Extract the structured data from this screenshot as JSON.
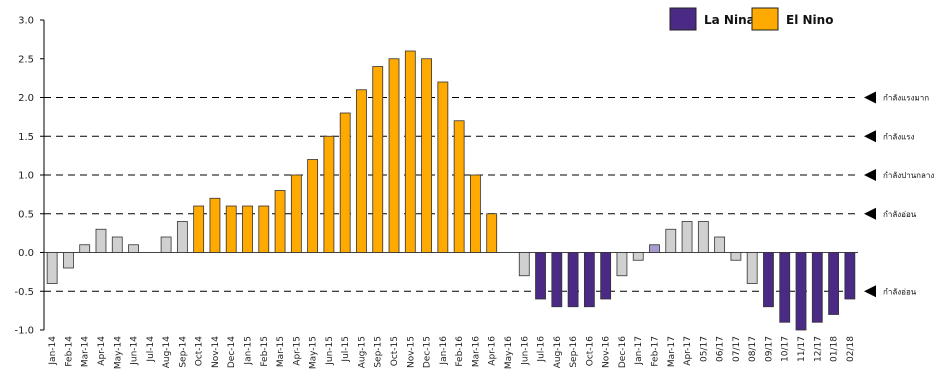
{
  "chart_data": {
    "type": "bar",
    "ylim": [
      -1.0,
      3.0
    ],
    "yticks": [
      "3.0",
      "2.5",
      "2.0",
      "1.5",
      "1.0",
      "0.5",
      "0.0",
      "-0.5",
      "-1.0"
    ],
    "ytick_values": [
      3.0,
      2.5,
      2.0,
      1.5,
      1.0,
      0.5,
      0.0,
      -0.5,
      -1.0
    ],
    "categories": [
      "Jan-14",
      "Feb-14",
      "Mar-14",
      "Apr-14",
      "May-14",
      "Jun-14",
      "Jul-14",
      "Aug-14",
      "Sep-14",
      "Oct-14",
      "Nov-14",
      "Dec-14",
      "Jan-15",
      "Feb-15",
      "Mar-15",
      "Apr-15",
      "May-15",
      "Jun-15",
      "Jul-15",
      "Aug-15",
      "Sep-15",
      "Oct-15",
      "Nov-15",
      "Dec-15",
      "Jan-16",
      "Feb-16",
      "Mar-16",
      "Apr-16",
      "May-16",
      "Jun-16",
      "Jul-16",
      "Aug-16",
      "Sep-16",
      "Oct-16",
      "Nov-16",
      "Dec-16",
      "Jan-17",
      "Feb-17",
      "Mar-17",
      "Apr-17",
      "05/17",
      "06/17",
      "07/17",
      "08/17",
      "09/17",
      "10/17",
      "11/17",
      "12/17",
      "01/18",
      "02/18"
    ],
    "values": [
      -0.4,
      -0.2,
      0.1,
      0.3,
      0.2,
      0.1,
      0.0,
      0.2,
      0.4,
      0.6,
      0.7,
      0.6,
      0.6,
      0.6,
      0.8,
      1.0,
      1.2,
      1.5,
      1.8,
      2.1,
      2.4,
      2.5,
      2.6,
      2.5,
      2.2,
      1.7,
      1.0,
      0.5,
      0.0,
      -0.3,
      -0.6,
      -0.7,
      -0.7,
      -0.7,
      -0.6,
      -0.3,
      -0.1,
      0.1,
      0.3,
      0.4,
      0.4,
      0.2,
      -0.1,
      -0.4,
      -0.7,
      -0.9,
      -1.0,
      -0.9,
      -0.8,
      -0.6
    ],
    "kinds": [
      "N",
      "N",
      "N",
      "N",
      "N",
      "N",
      "N",
      "N",
      "N",
      "E",
      "E",
      "E",
      "E",
      "E",
      "E",
      "E",
      "E",
      "E",
      "E",
      "E",
      "E",
      "E",
      "E",
      "E",
      "E",
      "E",
      "E",
      "E",
      "N",
      "N",
      "L",
      "L",
      "L",
      "L",
      "L",
      "N",
      "N",
      "F",
      "N",
      "N",
      "N",
      "N",
      "N",
      "N",
      "L",
      "L",
      "L",
      "L",
      "L",
      "L"
    ],
    "colors": {
      "el_nino": "#FFAA00",
      "la_nina": "#4B2A85",
      "neutral": "#D0D0D0",
      "forecast": "#A99BD0",
      "outline": "#333333"
    },
    "legend": [
      {
        "label": "La Nina",
        "color": "#4B2A85"
      },
      {
        "label": "El Nino",
        "color": "#FFAA00"
      }
    ],
    "legend_position": "top-right",
    "thresholds": [
      {
        "value": 2.0,
        "label": "กำลังแรงมาก"
      },
      {
        "value": 1.5,
        "label": "กำลังแรง"
      },
      {
        "value": 1.0,
        "label": "กำลังปานกลาง"
      },
      {
        "value": 0.5,
        "label": "กำลังอ่อน"
      },
      {
        "value": -0.5,
        "label": "กำลังอ่อน"
      }
    ],
    "grid": false
  }
}
